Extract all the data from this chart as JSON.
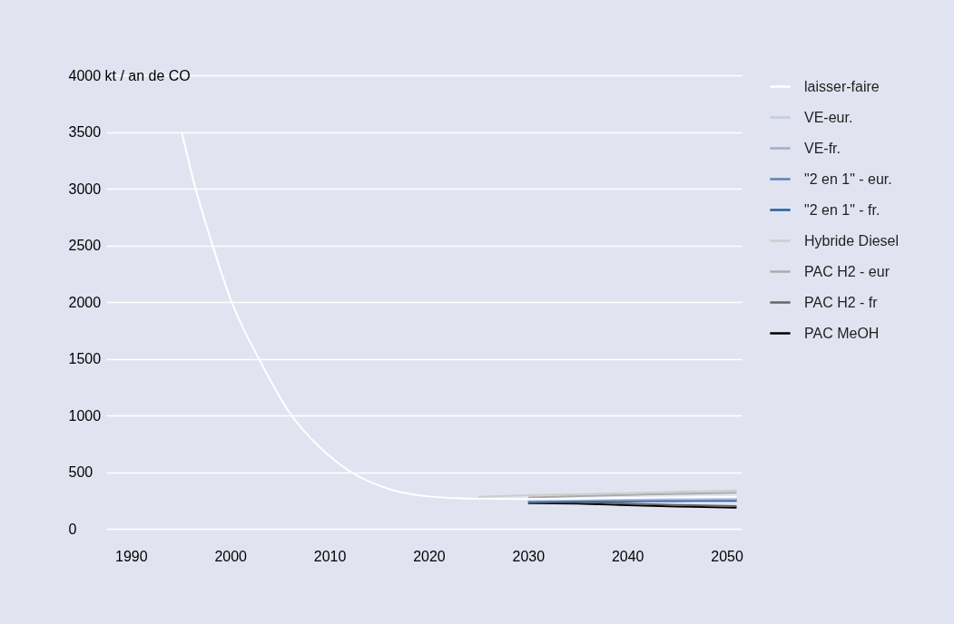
{
  "chart_data": {
    "type": "line",
    "ylabel": "kt / an de CO",
    "x": [
      1995.1,
      1996.5,
      1998,
      2000,
      2003,
      2006,
      2009,
      2012,
      2016,
      2020,
      2025,
      2030,
      2035,
      2040,
      2045,
      2051
    ],
    "xlim": [
      1987.5,
      2051.5
    ],
    "xticks": [
      1990,
      2000,
      2010,
      2020,
      2030,
      2040,
      2050
    ],
    "ylim": [
      0,
      4000
    ],
    "yticks": [
      0,
      500,
      1000,
      1500,
      2000,
      2500,
      3000,
      3500,
      4000
    ],
    "grid": "y",
    "legend": "right",
    "series": [
      {
        "name": "laisser-faire",
        "color": "#ffffff",
        "values": [
          3500,
          3000,
          2560,
          2030,
          1480,
          1020,
          720,
          510,
          350,
          285,
          265,
          262,
          266,
          272,
          277,
          282
        ]
      },
      {
        "name": "VE-eur.",
        "color": "#c5cae2",
        "values": [
          null,
          null,
          null,
          null,
          null,
          null,
          null,
          null,
          null,
          null,
          null,
          256,
          262,
          266,
          268,
          270
        ]
      },
      {
        "name": "VE-fr.",
        "color": "#9fadd0",
        "values": [
          null,
          null,
          null,
          null,
          null,
          null,
          null,
          null,
          null,
          null,
          null,
          250,
          255,
          258,
          260,
          262
        ]
      },
      {
        "name": "\"2 en 1\" - eur.",
        "color": "#5b80bb",
        "values": [
          null,
          null,
          null,
          null,
          null,
          null,
          null,
          null,
          null,
          null,
          null,
          244,
          248,
          251,
          253,
          254
        ]
      },
      {
        "name": "\"2 en 1\" - fr.",
        "color": "#1f5fa0",
        "values": [
          null,
          null,
          null,
          null,
          null,
          null,
          null,
          null,
          null,
          null,
          null,
          238,
          241,
          243,
          245,
          246
        ]
      },
      {
        "name": "Hybride Diesel",
        "color": "#cdcdcd",
        "values": [
          null,
          null,
          null,
          null,
          null,
          null,
          null,
          null,
          null,
          null,
          282,
          296,
          305,
          315,
          326,
          338
        ]
      },
      {
        "name": "PAC  H2 - eur",
        "color": "#ababab",
        "values": [
          null,
          null,
          null,
          null,
          null,
          null,
          null,
          null,
          null,
          null,
          null,
          276,
          288,
          298,
          308,
          318
        ]
      },
      {
        "name": "PAC H2 - fr",
        "color": "#666666",
        "values": [
          null,
          null,
          null,
          null,
          null,
          null,
          null,
          null,
          null,
          null,
          null,
          232,
          235,
          222,
          210,
          200
        ]
      },
      {
        "name": "PAC  MeOH",
        "color": "#000000",
        "values": [
          null,
          null,
          null,
          null,
          null,
          null,
          null,
          null,
          null,
          null,
          null,
          226,
          222,
          208,
          196,
          186
        ]
      }
    ]
  }
}
